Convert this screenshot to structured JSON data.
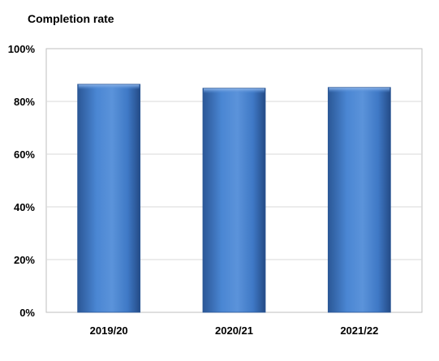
{
  "chart_data": {
    "type": "bar",
    "title": "Completion rate",
    "xlabel": "",
    "ylabel": "",
    "categories": [
      "2019/20",
      "2020/21",
      "2021/22"
    ],
    "values": [
      86.5,
      85,
      85.3
    ],
    "ylim": [
      0,
      100
    ],
    "yticks": [
      0,
      20,
      40,
      60,
      80,
      100
    ],
    "ytick_labels": [
      "0%",
      "20%",
      "40%",
      "60%",
      "80%",
      "100%"
    ],
    "grid": true,
    "legend": "none",
    "colors": {
      "bar_light": "#5b93da",
      "bar_mid": "#3f79c6",
      "bar_dark": "#244b86",
      "grid": "#d9d9d9",
      "border": "#bfbfbf"
    }
  }
}
